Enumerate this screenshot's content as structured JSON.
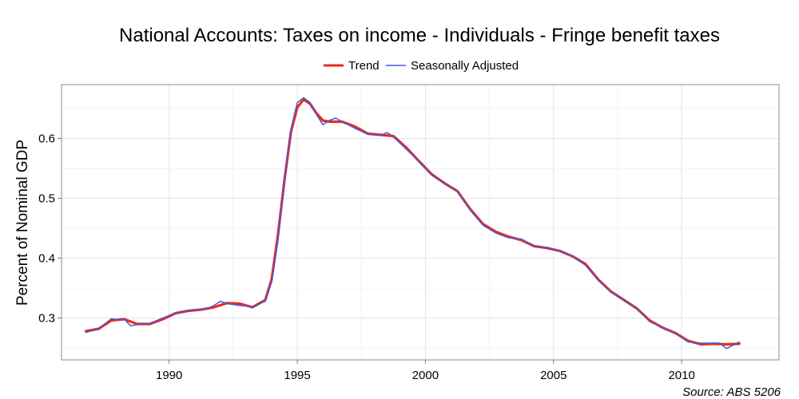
{
  "chart_data": {
    "type": "line",
    "title": "National Accounts: Taxes on income - Individuals - Fringe benefit taxes",
    "xlabel": "",
    "ylabel": "Percent of Nominal GDP",
    "source": "Source: ABS 5206",
    "xlim": [
      1985.8,
      2013.8
    ],
    "ylim": [
      0.23,
      0.69
    ],
    "xticks": [
      1990,
      1995,
      2000,
      2005,
      2010
    ],
    "xtick_labels": [
      "1990",
      "1995",
      "2000",
      "2005",
      "2010"
    ],
    "yticks": [
      0.3,
      0.4,
      0.5,
      0.6
    ],
    "ytick_labels": [
      "0.3",
      "0.4",
      "0.5",
      "0.6"
    ],
    "grid": true,
    "legend_position": "top-center",
    "series": [
      {
        "name": "Trend",
        "color": "#ee2a1b",
        "x": [
          1986.75,
          1987.25,
          1987.75,
          1988.25,
          1988.75,
          1989.25,
          1989.75,
          1990.25,
          1990.75,
          1991.25,
          1991.75,
          1992.25,
          1992.75,
          1993.25,
          1993.75,
          1994.0,
          1994.25,
          1994.5,
          1994.75,
          1995.0,
          1995.25,
          1995.5,
          1995.75,
          1996.0,
          1996.25,
          1996.5,
          1996.75,
          1997.25,
          1997.75,
          1998.25,
          1998.75,
          1999.25,
          1999.75,
          2000.25,
          2000.75,
          2001.25,
          2001.75,
          2002.25,
          2002.75,
          2003.25,
          2003.75,
          2004.25,
          2004.75,
          2005.25,
          2005.75,
          2006.25,
          2006.75,
          2007.25,
          2007.75,
          2008.25,
          2008.75,
          2009.25,
          2009.75,
          2010.25,
          2010.75,
          2011.25,
          2011.75,
          2012.25
        ],
        "y": [
          0.278,
          0.282,
          0.296,
          0.298,
          0.29,
          0.29,
          0.298,
          0.308,
          0.312,
          0.314,
          0.318,
          0.325,
          0.324,
          0.318,
          0.33,
          0.365,
          0.44,
          0.53,
          0.61,
          0.652,
          0.665,
          0.658,
          0.642,
          0.63,
          0.628,
          0.628,
          0.628,
          0.62,
          0.608,
          0.606,
          0.604,
          0.585,
          0.562,
          0.54,
          0.525,
          0.512,
          0.482,
          0.457,
          0.444,
          0.436,
          0.43,
          0.42,
          0.417,
          0.412,
          0.403,
          0.39,
          0.364,
          0.344,
          0.33,
          0.316,
          0.296,
          0.284,
          0.275,
          0.262,
          0.256,
          0.257,
          0.256,
          0.257
        ]
      },
      {
        "name": "Seasonally Adjusted",
        "color": "#4459d9",
        "x": [
          1986.75,
          1987.25,
          1987.75,
          1988.0,
          1988.25,
          1988.5,
          1988.75,
          1989.25,
          1989.75,
          1990.25,
          1990.75,
          1991.25,
          1991.5,
          1991.75,
          1992.0,
          1992.25,
          1992.75,
          1993.25,
          1993.75,
          1994.0,
          1994.25,
          1994.5,
          1994.75,
          1995.0,
          1995.25,
          1995.5,
          1995.75,
          1996.0,
          1996.25,
          1996.5,
          1996.75,
          1997.25,
          1997.75,
          1998.25,
          1998.5,
          1998.75,
          1999.25,
          1999.75,
          2000.25,
          2000.75,
          2001.25,
          2001.75,
          2002.25,
          2002.75,
          2003.25,
          2003.75,
          2004.25,
          2004.75,
          2005.25,
          2005.75,
          2006.25,
          2006.75,
          2007.25,
          2007.75,
          2008.25,
          2008.75,
          2009.25,
          2009.75,
          2010.25,
          2010.75,
          2011.25,
          2011.5,
          2011.75,
          2012.25
        ],
        "y": [
          0.276,
          0.282,
          0.299,
          0.297,
          0.298,
          0.287,
          0.289,
          0.291,
          0.3,
          0.308,
          0.313,
          0.315,
          0.316,
          0.321,
          0.328,
          0.324,
          0.321,
          0.319,
          0.328,
          0.36,
          0.43,
          0.53,
          0.615,
          0.66,
          0.668,
          0.66,
          0.64,
          0.623,
          0.63,
          0.634,
          0.628,
          0.617,
          0.607,
          0.605,
          0.61,
          0.603,
          0.582,
          0.562,
          0.54,
          0.524,
          0.512,
          0.48,
          0.455,
          0.442,
          0.434,
          0.432,
          0.42,
          0.417,
          0.412,
          0.403,
          0.388,
          0.363,
          0.343,
          0.33,
          0.316,
          0.294,
          0.284,
          0.275,
          0.26,
          0.258,
          0.258,
          0.258,
          0.249,
          0.26
        ]
      }
    ]
  }
}
